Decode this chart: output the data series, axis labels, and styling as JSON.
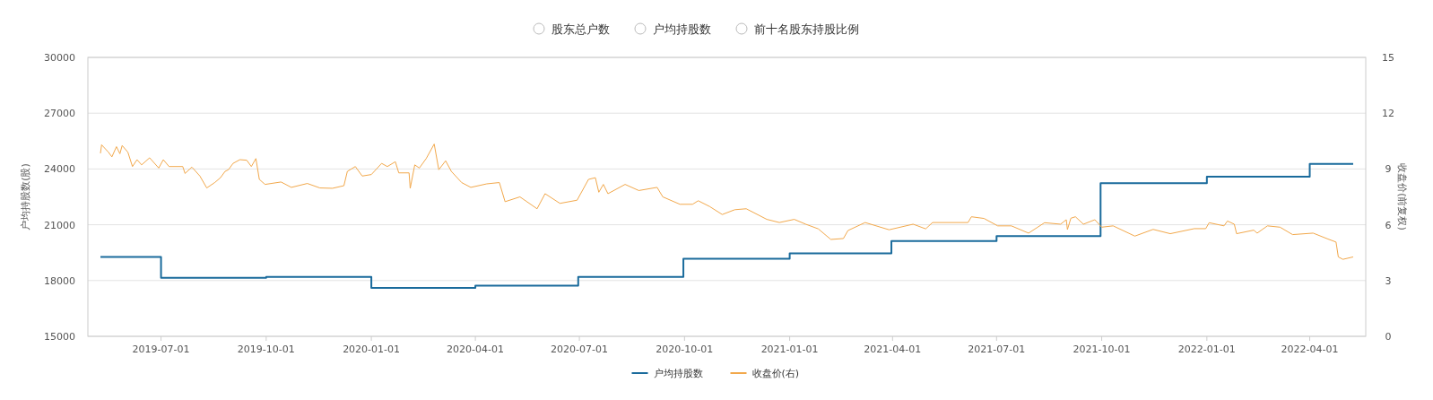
{
  "chart_data": {
    "type": "line",
    "ylabel": "户均持股数(股)",
    "y2label": "收盘价(前复权)",
    "annotations": [
      "股东总户数",
      "户均持股数",
      "前十名股东持股比例"
    ],
    "xlim": [
      "2019-04-28",
      "2022-05-20"
    ],
    "xticks": [
      "2019-07-01",
      "2019-10-01",
      "2020-01-01",
      "2020-04-01",
      "2020-07-01",
      "2020-10-01",
      "2021-01-01",
      "2021-04-01",
      "2021-07-01",
      "2021-10-01",
      "2022-01-01",
      "2022-04-01"
    ],
    "ylim": [
      15000,
      30000
    ],
    "yticks": [
      15000,
      18000,
      21000,
      24000,
      27000,
      30000
    ],
    "y2lim": [
      0,
      15
    ],
    "y2ticks": [
      0,
      3,
      6,
      9,
      12,
      15
    ],
    "grid": "y",
    "legend": "bottom",
    "series": [
      {
        "name": "户均持股数",
        "type": "step",
        "color": "#1a6b9c",
        "x": [
          "2019-05-09",
          "2019-07-01",
          "2019-10-01",
          "2020-01-01",
          "2020-04-01",
          "2020-06-30",
          "2020-09-30",
          "2021-01-01",
          "2021-03-31",
          "2021-07-01",
          "2021-09-30",
          "2022-01-01",
          "2022-04-01",
          "2022-05-09"
        ],
        "values": [
          19270,
          18150,
          18200,
          17600,
          17720,
          18200,
          19170,
          19460,
          20130,
          20390,
          23230,
          23590,
          24270,
          24270
        ]
      },
      {
        "name": "收盘价(右)",
        "type": "line",
        "axis": "y2",
        "color": "#f2a84b",
        "x": [
          "2019-05-09",
          "2019-05-10",
          "2019-05-16",
          "2019-05-19",
          "2019-05-23",
          "2019-05-26",
          "2019-05-28",
          "2019-06-02",
          "2019-06-06",
          "2019-06-10",
          "2019-06-14",
          "2019-06-21",
          "2019-06-29",
          "2019-07-03",
          "2019-07-08",
          "2019-07-20",
          "2019-07-22",
          "2019-07-28",
          "2019-08-04",
          "2019-08-10",
          "2019-08-17",
          "2019-08-22",
          "2019-08-26",
          "2019-08-29",
          "2019-09-02",
          "2019-09-08",
          "2019-09-14",
          "2019-09-18",
          "2019-09-22",
          "2019-09-25",
          "2019-09-30",
          "2019-10-14",
          "2019-10-23",
          "2019-11-06",
          "2019-11-17",
          "2019-11-28",
          "2019-12-08",
          "2019-12-11",
          "2019-12-18",
          "2019-12-24",
          "2020-01-01",
          "2020-01-10",
          "2020-01-15",
          "2020-01-22",
          "2020-01-25",
          "2020-02-03",
          "2020-02-04",
          "2020-02-08",
          "2020-02-12",
          "2020-02-18",
          "2020-02-25",
          "2020-02-29",
          "2020-03-06",
          "2020-03-11",
          "2020-03-20",
          "2020-03-28",
          "2020-04-11",
          "2020-04-22",
          "2020-04-27",
          "2020-05-10",
          "2020-05-25",
          "2020-06-01",
          "2020-06-14",
          "2020-06-29",
          "2020-07-09",
          "2020-07-15",
          "2020-07-18",
          "2020-07-22",
          "2020-07-26",
          "2020-08-10",
          "2020-08-22",
          "2020-09-07",
          "2020-09-12",
          "2020-09-27",
          "2020-10-08",
          "2020-10-13",
          "2020-10-23",
          "2020-11-03",
          "2020-11-14",
          "2020-11-24",
          "2020-12-12",
          "2020-12-23",
          "2021-01-05",
          "2021-01-15",
          "2021-01-26",
          "2021-02-06",
          "2021-02-17",
          "2021-02-21",
          "2021-03-08",
          "2021-03-29",
          "2021-04-19",
          "2021-04-30",
          "2021-05-06",
          "2021-06-06",
          "2021-06-09",
          "2021-06-20",
          "2021-07-02",
          "2021-07-14",
          "2021-07-29",
          "2021-08-12",
          "2021-08-26",
          "2021-08-31",
          "2021-09-01",
          "2021-09-04",
          "2021-09-08",
          "2021-09-15",
          "2021-09-25",
          "2021-10-01",
          "2021-10-11",
          "2021-10-30",
          "2021-11-15",
          "2021-11-30",
          "2021-12-21",
          "2021-12-31",
          "2022-01-03",
          "2022-01-16",
          "2022-01-19",
          "2022-01-25",
          "2022-01-27",
          "2022-02-11",
          "2022-02-14",
          "2022-02-23",
          "2022-03-06",
          "2022-03-17",
          "2022-04-04",
          "2022-04-17",
          "2022-04-24",
          "2022-04-26",
          "2022-04-30",
          "2022-05-09"
        ],
        "values": [
          9.84,
          10.3,
          9.9,
          9.65,
          10.2,
          9.82,
          10.26,
          9.9,
          9.13,
          9.5,
          9.22,
          9.6,
          9.05,
          9.5,
          9.13,
          9.13,
          8.76,
          9.1,
          8.62,
          7.98,
          8.27,
          8.53,
          8.87,
          8.96,
          9.3,
          9.5,
          9.47,
          9.13,
          9.56,
          8.44,
          8.17,
          8.3,
          8.01,
          8.22,
          7.98,
          7.96,
          8.1,
          8.87,
          9.13,
          8.62,
          8.7,
          9.3,
          9.13,
          9.39,
          8.79,
          8.79,
          7.96,
          9.22,
          9.05,
          9.56,
          10.34,
          8.96,
          9.44,
          8.87,
          8.27,
          8.01,
          8.2,
          8.27,
          7.24,
          7.5,
          6.86,
          7.67,
          7.15,
          7.32,
          8.44,
          8.53,
          7.75,
          8.17,
          7.67,
          8.17,
          7.84,
          8.01,
          7.5,
          7.1,
          7.1,
          7.29,
          6.98,
          6.55,
          6.81,
          6.86,
          6.29,
          6.12,
          6.29,
          6.03,
          5.78,
          5.21,
          5.26,
          5.69,
          6.12,
          5.73,
          6.03,
          5.78,
          6.12,
          6.12,
          6.43,
          6.34,
          5.94,
          5.94,
          5.55,
          6.11,
          6.03,
          6.27,
          5.74,
          6.35,
          6.43,
          6.03,
          6.27,
          5.87,
          5.94,
          5.39,
          5.75,
          5.52,
          5.79,
          5.79,
          6.11,
          5.94,
          6.2,
          6.03,
          5.52,
          5.71,
          5.55,
          5.94,
          5.87,
          5.47,
          5.55,
          5.23,
          5.07,
          4.27,
          4.14,
          4.27
        ]
      }
    ]
  }
}
